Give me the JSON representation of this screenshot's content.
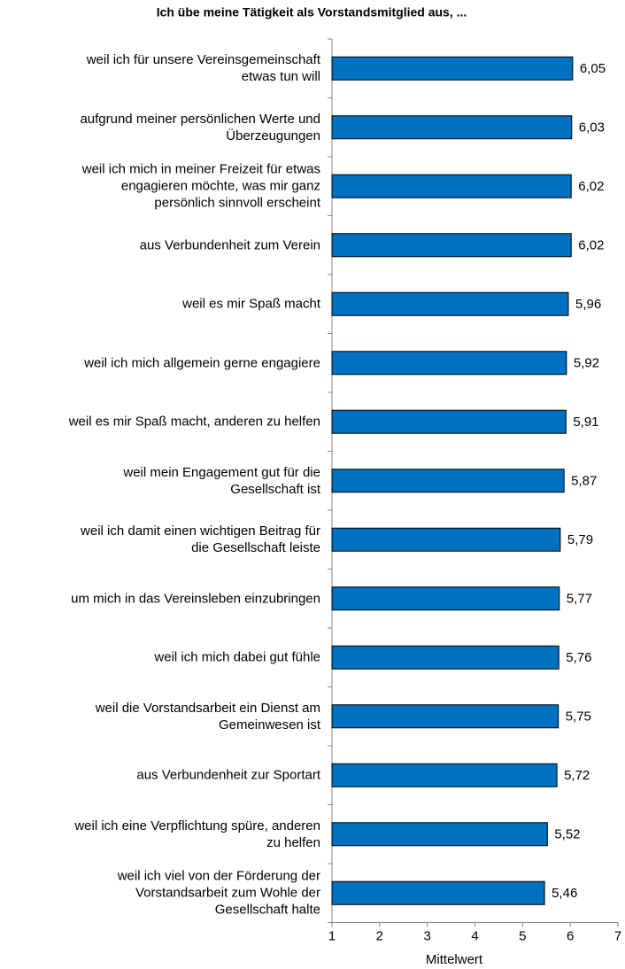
{
  "chart_data": {
    "type": "hbar",
    "title": "Ich übe meine Tätigkeit als Vorstandsmitglied aus, ...",
    "categories": [
      "weil ich für unsere Vereinsgemeinschaft\netwas tun will",
      "aufgrund meiner persönlichen Werte und\nÜberzeugungen",
      "weil ich mich in meiner Freizeit für etwas\nengagieren möchte, was mir ganz\npersönlich sinnvoll erscheint",
      "aus Verbundenheit zum Verein",
      "weil es mir Spaß macht",
      "weil ich mich allgemein gerne engagiere",
      "weil es mir Spaß macht, anderen zu helfen",
      "weil mein Engagement gut für die\nGesellschaft ist",
      "weil ich damit einen wichtigen Beitrag für\ndie Gesellschaft leiste",
      "um mich in das Vereinsleben einzubringen",
      "weil ich mich dabei gut fühle",
      "weil die Vorstandsarbeit ein Dienst am\nGemeinwesen ist",
      "aus Verbundenheit zur Sportart",
      "weil ich eine Verpflichtung spüre, anderen\nzu helfen",
      "weil ich viel von der Förderung der\nVorstandsarbeit zum Wohle der\nGesellschaft halte"
    ],
    "values": [
      6.05,
      6.03,
      6.02,
      6.02,
      5.96,
      5.92,
      5.91,
      5.87,
      5.79,
      5.77,
      5.76,
      5.75,
      5.72,
      5.52,
      5.46
    ],
    "value_labels": [
      "6,05",
      "6,03",
      "6,02",
      "6,02",
      "5,96",
      "5,92",
      "5,91",
      "5,87",
      "5,79",
      "5,77",
      "5,76",
      "5,75",
      "5,72",
      "5,52",
      "5,46"
    ],
    "color": "#0070c0",
    "x_label": "Mittelwert",
    "xlim": [
      1,
      7
    ],
    "xticks": [
      1,
      2,
      3,
      4,
      5,
      6,
      7
    ]
  }
}
